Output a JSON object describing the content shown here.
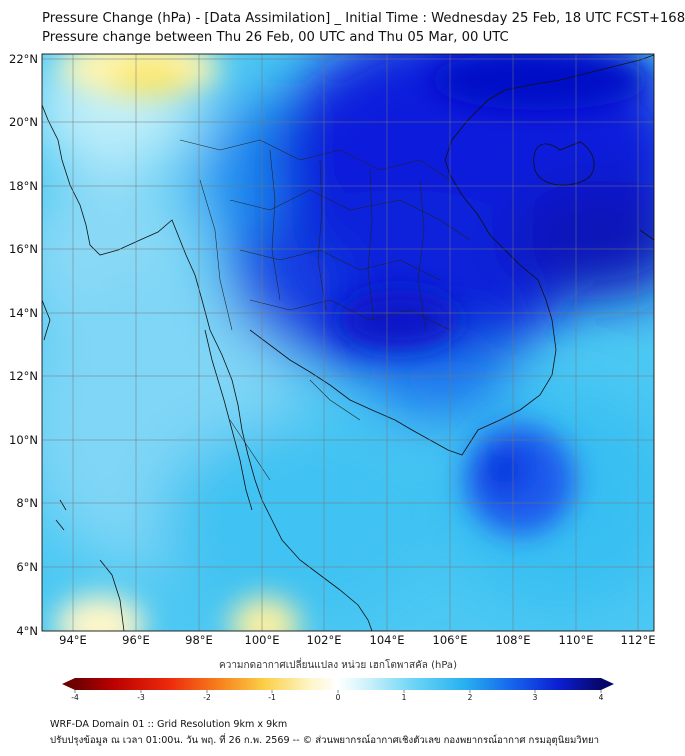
{
  "header": {
    "title": "Pressure Change (hPa) - [Data Assimilation] _ Initial Time : Wednesday 25 Feb, 18 UTC FCST+168",
    "subtitle": "Pressure change between Thu 26 Feb, 00 UTC and Thu 05 Mar, 00 UTC"
  },
  "map": {
    "lat_labels": [
      "22°N",
      "20°N",
      "18°N",
      "16°N",
      "14°N",
      "12°N",
      "10°N",
      "8°N",
      "6°N",
      "4°N"
    ],
    "lon_labels": [
      "94°E",
      "96°E",
      "98°E",
      "100°E",
      "102°E",
      "104°E",
      "106°E",
      "108°E",
      "110°E",
      "112°E"
    ],
    "lat_values": [
      22,
      20,
      18,
      16,
      14,
      12,
      10,
      8,
      6,
      4
    ],
    "lon_values": [
      94,
      96,
      98,
      100,
      102,
      104,
      106,
      108,
      110,
      112
    ],
    "lat_range": [
      4,
      22.3
    ],
    "lon_range": [
      93,
      112.5
    ],
    "grid": true,
    "field_colors": {
      "strong_fall": "#0a14d8",
      "moderate_fall": "#1e6ef0",
      "weak_fall": "#48c6f2",
      "near_zero": "#ffffff",
      "rise": "#fbea6a"
    }
  },
  "colorbar": {
    "title": "ความกดอากาศเปลี่ยนแปลง หน่วย เฮกโตพาสคัล (hPa)",
    "ticks": [
      "-4",
      "-3",
      "-2",
      "-1",
      "0",
      "1",
      "2",
      "3",
      "4"
    ],
    "tick_values": [
      -4,
      -3,
      -2,
      -1,
      0,
      1,
      2,
      3,
      4
    ],
    "range": [
      -4,
      4
    ],
    "colors": [
      "#6d0000",
      "#b80000",
      "#e81a0a",
      "#f5601e",
      "#f9a235",
      "#fbd24c",
      "#fcf1b0",
      "#ffffff",
      "#c8f0fb",
      "#74d7f6",
      "#2fb7f0",
      "#1a7ff0",
      "#1037e6",
      "#0b0fb4",
      "#09075e"
    ]
  },
  "footer": {
    "line1": "WRF-DA Domain 01 :: Grid Resolution 9km x 9km",
    "line2": "ปรับปรุงข้อมูล ณ เวลา 01:00น. วัน พฤ. ที่ 26 ก.พ. 2569 -- © ส่วนพยากรณ์อากาศเชิงตัวเลข กองพยากรณ์อากาศ กรมอุตุนิยมวิทยา"
  }
}
